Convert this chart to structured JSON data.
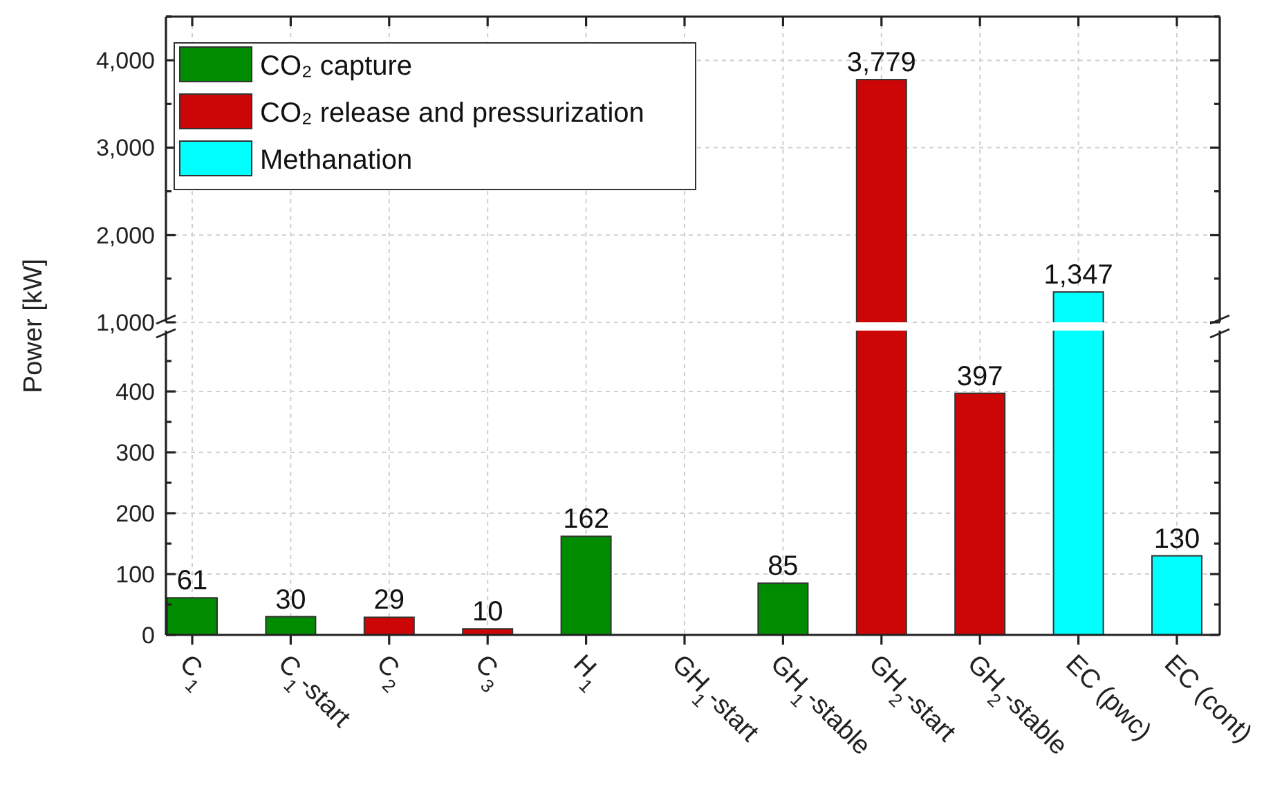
{
  "chart_data": [
    {
      "type": "bar",
      "ylabel": "Power [kW]",
      "categories": [
        null,
        null,
        null,
        null,
        null,
        null,
        null,
        null,
        null,
        null,
        null
      ],
      "series": [
        {
          "name": "CO₂ capture",
          "color": "#008c00",
          "values": [
            null,
            null,
            null,
            null,
            null,
            null,
            null,
            null,
            null,
            null,
            null
          ]
        },
        {
          "name": "CO₂ release and pressurization",
          "color": "#cc0606",
          "values": [
            null,
            null,
            null,
            null,
            null,
            null,
            null,
            3779,
            null,
            null,
            null
          ],
          "value_labels": [
            null,
            null,
            null,
            null,
            null,
            null,
            null,
            "3,779",
            null,
            null,
            null
          ]
        },
        {
          "name": "Methanation",
          "color": "#00ffff",
          "values": [
            null,
            null,
            null,
            null,
            null,
            null,
            null,
            null,
            null,
            1347,
            null
          ],
          "value_labels": [
            null,
            null,
            null,
            null,
            null,
            null,
            null,
            null,
            null,
            "1,347",
            null
          ]
        }
      ],
      "ylim": [
        1000,
        4500
      ],
      "yticks": [
        {
          "value": 1000,
          "label": "1,000"
        },
        {
          "value": 2000,
          "label": "2,000"
        },
        {
          "value": 3000,
          "label": "3,000"
        },
        {
          "value": 4000,
          "label": "4,000"
        }
      ],
      "grid": true,
      "legend": "top left",
      "tick_labels": "y"
    },
    {
      "type": "bar",
      "categories": [
        "C$_{1}$",
        "C$_{1}$-start",
        "C$_{2}$",
        "C$_{3}$",
        "H$_{1}$",
        "GH$_{1}$-start",
        "GH$_{1}$-stable",
        "GH$_{2}$-start",
        "GH$_{2}$-stable",
        "EC (pwc)",
        "EC (cont)"
      ],
      "series": [
        {
          "color": "#008c00",
          "values": [
            61,
            30,
            null,
            null,
            162,
            null,
            85,
            null,
            null,
            null,
            null
          ],
          "value_labels": [
            "61",
            "30",
            null,
            null,
            "162",
            null,
            "85",
            null,
            null,
            null,
            null
          ]
        },
        {
          "color": "#cc0606",
          "values": [
            null,
            null,
            29,
            10,
            null,
            null,
            null,
            null,
            397,
            null,
            null
          ],
          "value_labels": [
            null,
            null,
            "29",
            "10",
            null,
            null,
            null,
            null,
            "397",
            null,
            null
          ]
        },
        {
          "color": "#00ffff",
          "values": [
            null,
            null,
            null,
            null,
            null,
            null,
            null,
            null,
            null,
            null,
            130
          ],
          "value_labels": [
            null,
            null,
            null,
            null,
            null,
            null,
            null,
            null,
            null,
            null,
            "130"
          ]
        }
      ],
      "ylim": [
        0,
        500
      ],
      "yticks": [
        0,
        100,
        200,
        300,
        400
      ],
      "grid": true
    }
  ]
}
